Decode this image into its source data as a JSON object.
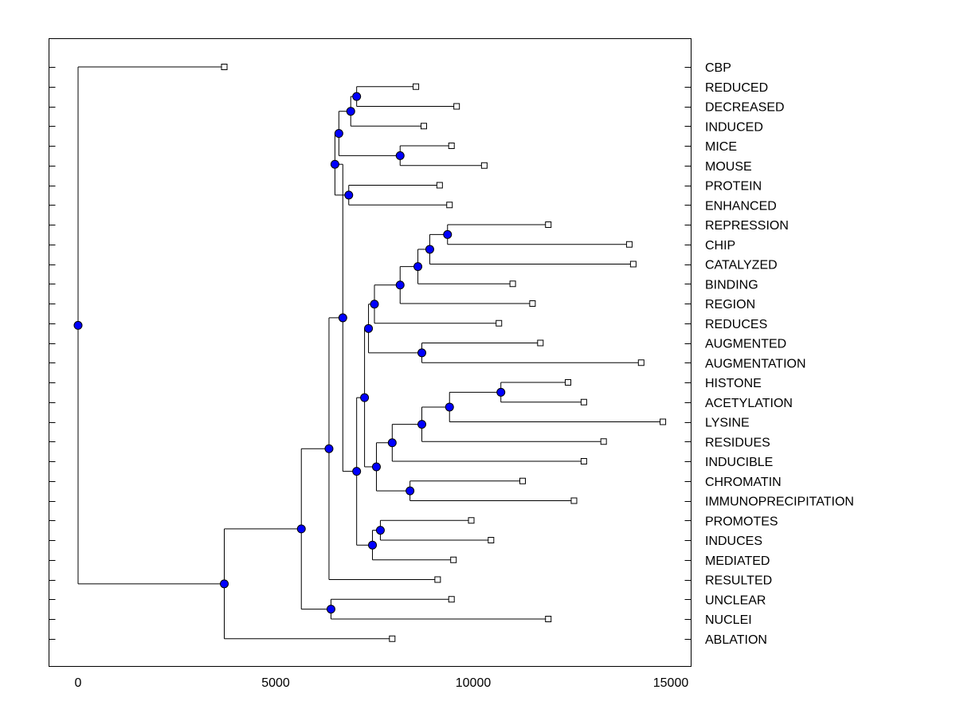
{
  "chart_data": {
    "type": "dendrogram",
    "orientation": "horizontal",
    "title": "",
    "xlabel": "",
    "ylabel": "",
    "xlim": [
      -750,
      15500
    ],
    "x_ticks": [
      0,
      5000,
      10000,
      15000
    ],
    "x_tick_labels": [
      "0",
      "5000",
      "10000",
      "15000"
    ],
    "grid": false,
    "colors": {
      "node": "#0000ff",
      "line": "#000000",
      "leaf_marker": "#ffffff"
    },
    "leaves": [
      {
        "label": "CBP",
        "x": 3700
      },
      {
        "label": "REDUCED",
        "x": 8550
      },
      {
        "label": "DECREASED",
        "x": 9580
      },
      {
        "label": "INDUCED",
        "x": 8750
      },
      {
        "label": "MICE",
        "x": 9450
      },
      {
        "label": "MOUSE",
        "x": 10280
      },
      {
        "label": "PROTEIN",
        "x": 9150
      },
      {
        "label": "ENHANCED",
        "x": 9400
      },
      {
        "label": "REPRESSION",
        "x": 11900
      },
      {
        "label": "CHIP",
        "x": 13950
      },
      {
        "label": "CATALYZED",
        "x": 14050
      },
      {
        "label": "BINDING",
        "x": 11000
      },
      {
        "label": "REGION",
        "x": 11500
      },
      {
        "label": "REDUCES",
        "x": 10650
      },
      {
        "label": "AUGMENTED",
        "x": 11700
      },
      {
        "label": "AUGMENTATION",
        "x": 14250
      },
      {
        "label": "HISTONE",
        "x": 12400
      },
      {
        "label": "ACETYLATION",
        "x": 12800
      },
      {
        "label": "LYSINE",
        "x": 14800
      },
      {
        "label": "RESIDUES",
        "x": 13300
      },
      {
        "label": "INDUCIBLE",
        "x": 12800
      },
      {
        "label": "CHROMATIN",
        "x": 11250
      },
      {
        "label": "IMMUNOPRECIPITATION",
        "x": 12550
      },
      {
        "label": "PROMOTES",
        "x": 9950
      },
      {
        "label": "INDUCES",
        "x": 10450
      },
      {
        "label": "MEDIATED",
        "x": 9500
      },
      {
        "label": "RESULTED",
        "x": 9100
      },
      {
        "label": "UNCLEAR",
        "x": 9450
      },
      {
        "label": "NUCLEI",
        "x": 11900
      },
      {
        "label": "ABLATION",
        "x": 7950
      }
    ],
    "merges": [
      {
        "id": "m1",
        "x": 7050,
        "children": [
          "L1",
          "L2"
        ]
      },
      {
        "id": "m2",
        "x": 6900,
        "children": [
          "m1",
          "L3"
        ]
      },
      {
        "id": "m3",
        "x": 8150,
        "children": [
          "L4",
          "L5"
        ]
      },
      {
        "id": "m4",
        "x": 6600,
        "children": [
          "m2",
          "m3"
        ]
      },
      {
        "id": "m5",
        "x": 6850,
        "children": [
          "L6",
          "L7"
        ]
      },
      {
        "id": "m6",
        "x": 6500,
        "children": [
          "m4",
          "m5"
        ]
      },
      {
        "id": "m7",
        "x": 9350,
        "children": [
          "L8",
          "L9"
        ]
      },
      {
        "id": "m8",
        "x": 8900,
        "children": [
          "m7",
          "L10"
        ]
      },
      {
        "id": "m9",
        "x": 8600,
        "children": [
          "m8",
          "L11"
        ]
      },
      {
        "id": "m10",
        "x": 8150,
        "children": [
          "m9",
          "L12"
        ]
      },
      {
        "id": "m11",
        "x": 7500,
        "children": [
          "m10",
          "L13"
        ]
      },
      {
        "id": "m12",
        "x": 8700,
        "children": [
          "L14",
          "L15"
        ]
      },
      {
        "id": "m13",
        "x": 7350,
        "children": [
          "m11",
          "m12"
        ]
      },
      {
        "id": "m14",
        "x": 10700,
        "children": [
          "L16",
          "L17"
        ]
      },
      {
        "id": "m15",
        "x": 9400,
        "children": [
          "m14",
          "L18"
        ]
      },
      {
        "id": "m16",
        "x": 8700,
        "children": [
          "m15",
          "L19"
        ]
      },
      {
        "id": "m17",
        "x": 7950,
        "children": [
          "m16",
          "L20"
        ]
      },
      {
        "id": "m18",
        "x": 8400,
        "children": [
          "L21",
          "L22"
        ]
      },
      {
        "id": "m19",
        "x": 7550,
        "children": [
          "m17",
          "m18"
        ]
      },
      {
        "id": "m20",
        "x": 7250,
        "children": [
          "m13",
          "m19"
        ]
      },
      {
        "id": "m21",
        "x": 7650,
        "children": [
          "L23",
          "L24"
        ]
      },
      {
        "id": "m22",
        "x": 7450,
        "children": [
          "m21",
          "L25"
        ]
      },
      {
        "id": "m23",
        "x": 7050,
        "children": [
          "m20",
          "m22"
        ]
      },
      {
        "id": "m24",
        "x": 6700,
        "children": [
          "m6",
          "m23"
        ]
      },
      {
        "id": "m25",
        "x": 6350,
        "children": [
          "m24",
          "L26"
        ]
      },
      {
        "id": "m26",
        "x": 6400,
        "children": [
          "L27",
          "L28"
        ]
      },
      {
        "id": "m27",
        "x": 5650,
        "children": [
          "m25",
          "m26"
        ]
      },
      {
        "id": "m28",
        "x": 3700,
        "children": [
          "m27",
          "L29"
        ]
      },
      {
        "id": "m29",
        "x": 0,
        "children": [
          "L0",
          "m28"
        ]
      }
    ]
  }
}
